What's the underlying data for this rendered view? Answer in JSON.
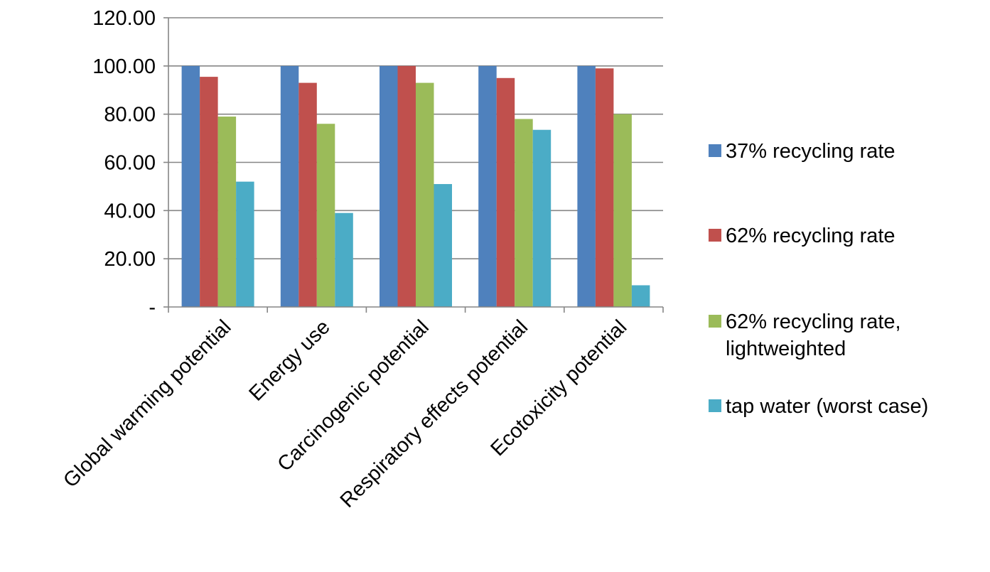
{
  "chart_data": {
    "type": "bar",
    "title": "",
    "xlabel": "",
    "ylabel": "",
    "ylim": [
      0,
      120
    ],
    "yticks": [
      0,
      20,
      40,
      60,
      80,
      100,
      120
    ],
    "ytick_labels": [
      "-",
      "20.00",
      "40.00",
      "60.00",
      "80.00",
      "100.00",
      "120.00"
    ],
    "grid": true,
    "legend_position": "right",
    "categories": [
      "Global warming potential",
      "Energy use",
      "Carcinogenic potential",
      "Respiratory effects potential",
      "Ecotoxicity potential"
    ],
    "series": [
      {
        "name": "37% recycling rate",
        "color": "#4F81BD",
        "values": [
          100,
          100,
          100,
          100,
          100
        ]
      },
      {
        "name": "62% recycling rate",
        "color": "#C0504D",
        "values": [
          95.5,
          93,
          100,
          95,
          99
        ]
      },
      {
        "name": "62% recycling rate, lightweighted",
        "color": "#9BBB59",
        "values": [
          79,
          76,
          93,
          78,
          80
        ]
      },
      {
        "name": "tap water (worst case)",
        "color": "#4BACC6",
        "values": [
          52,
          39,
          51,
          73.5,
          9
        ]
      }
    ]
  }
}
